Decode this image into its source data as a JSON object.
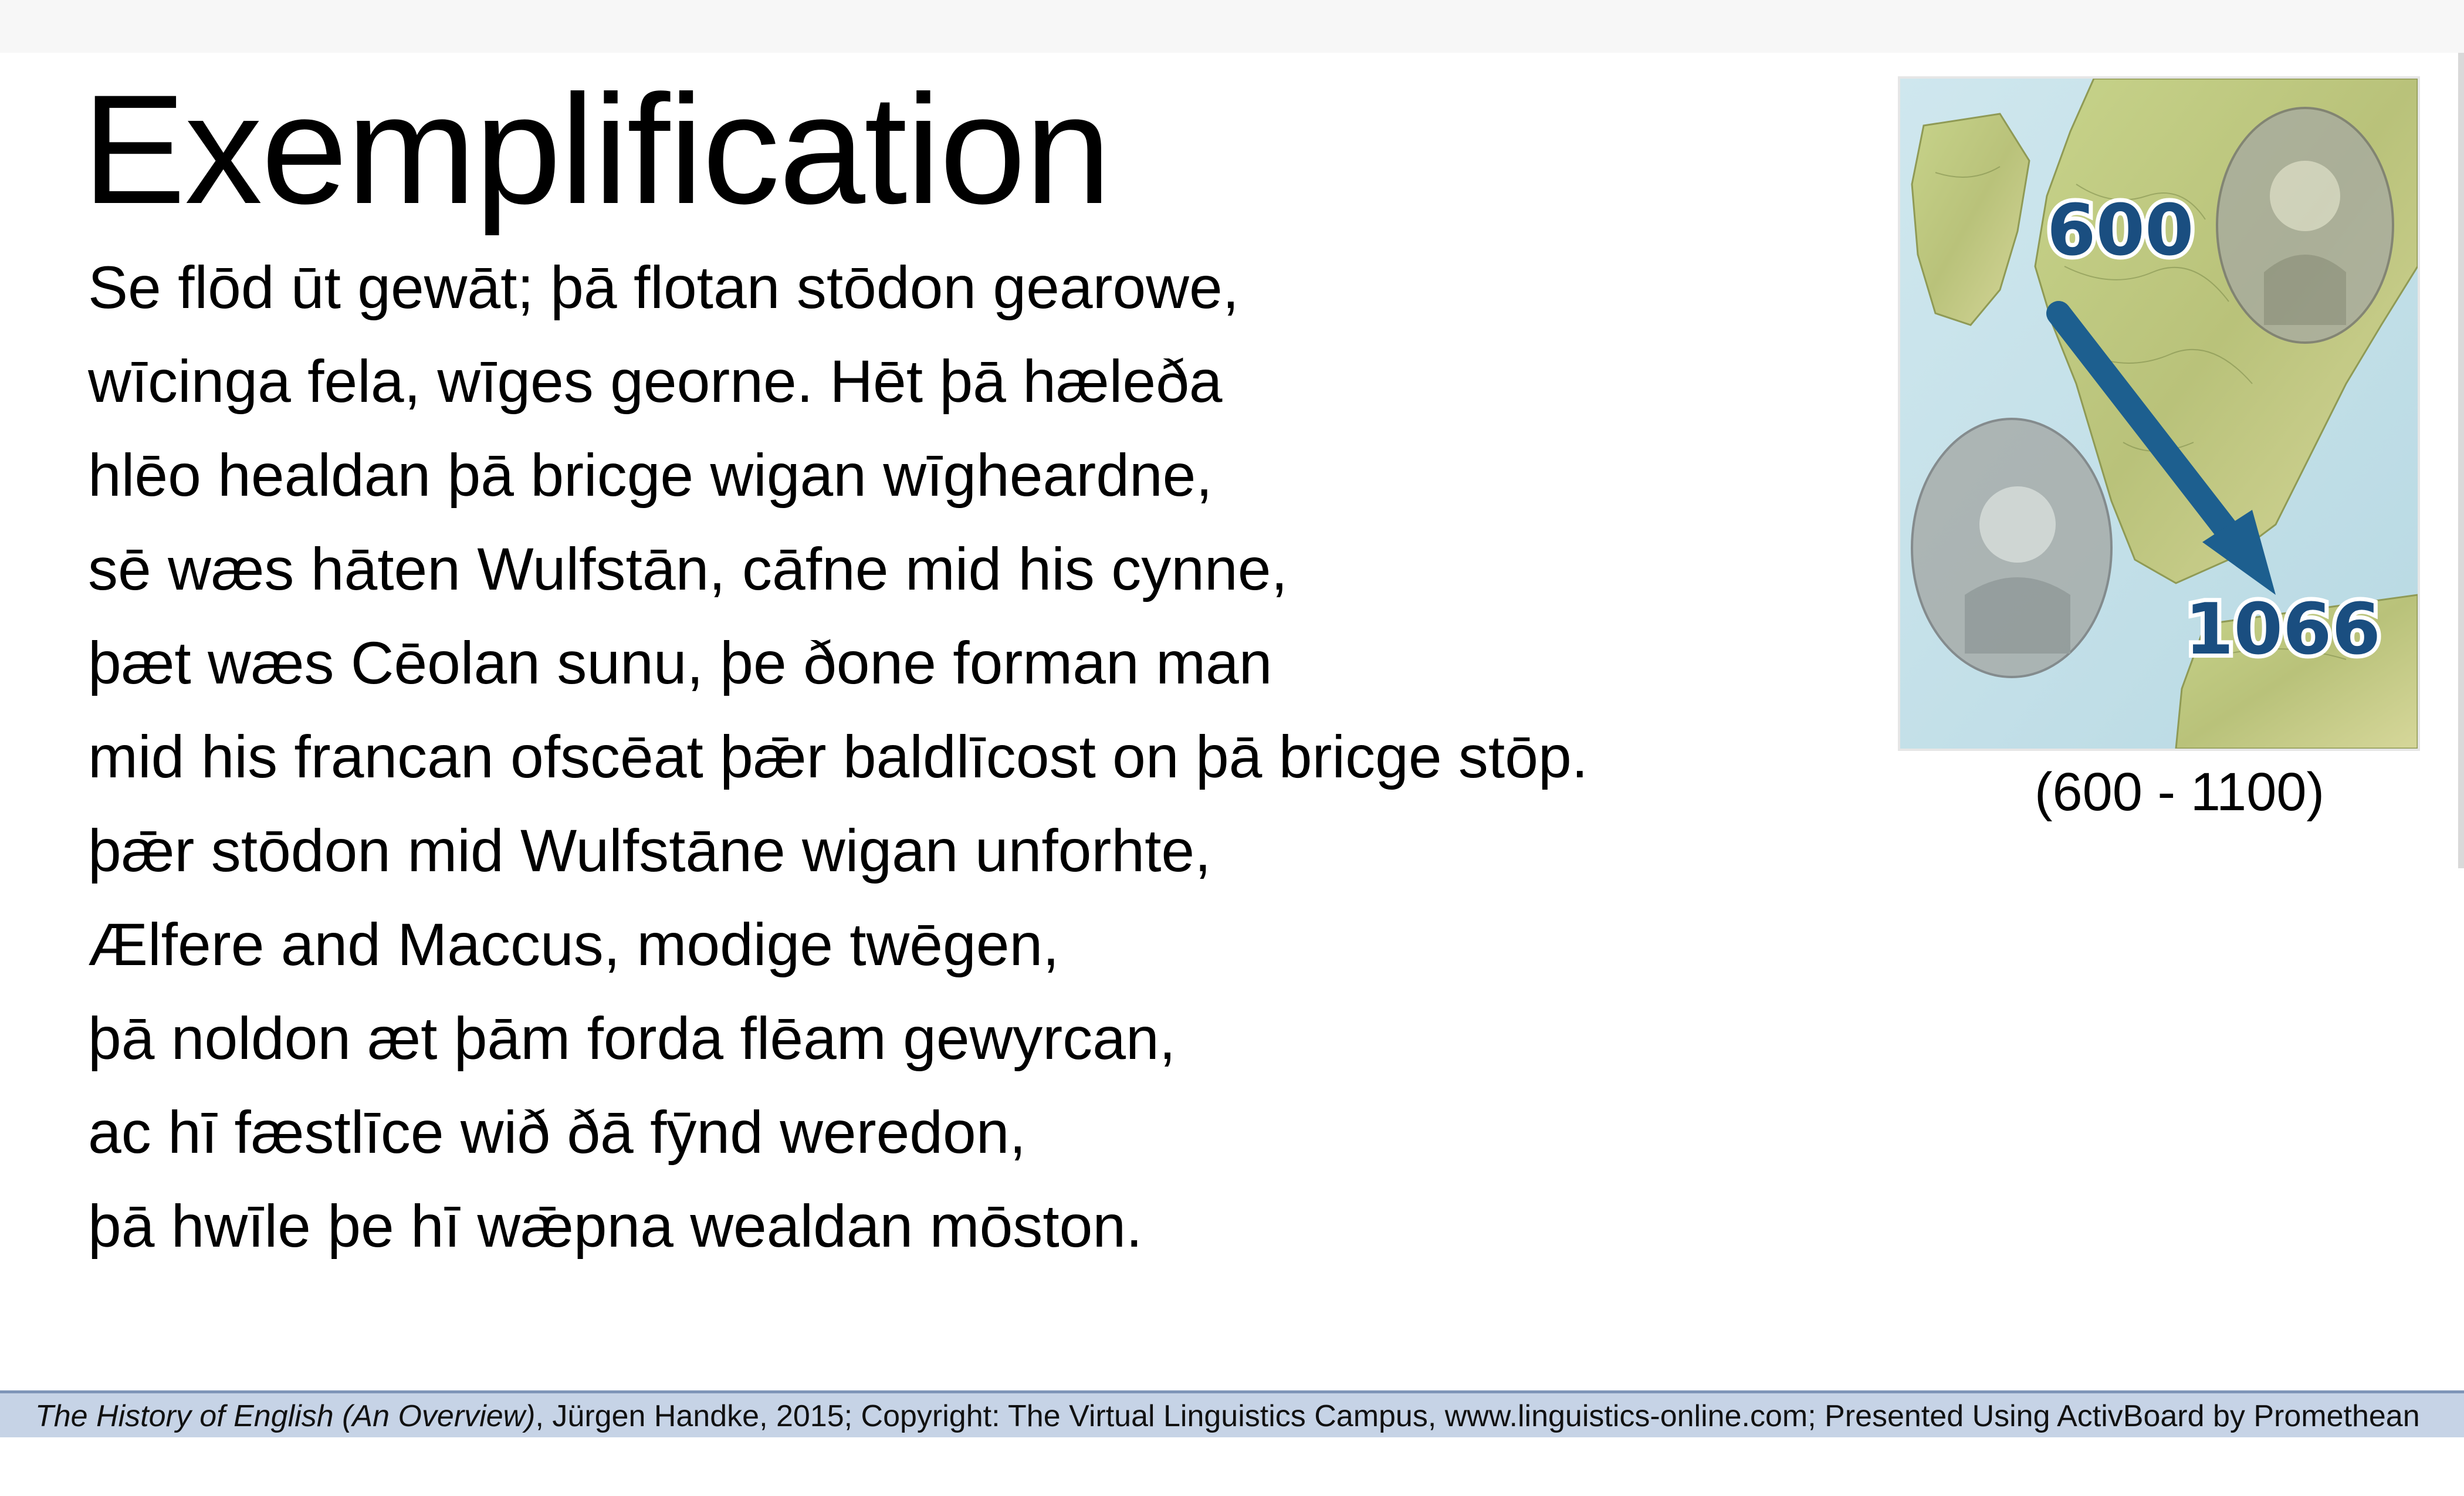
{
  "slide": {
    "title": "Exemplification",
    "poem_lines": [
      "Se flōd ūt gewāt; þā flotan stōdon gearowe,",
      "wīcinga fela, wīges georne. Hēt þā hæleða",
      "hlēo healdan þā bricge wigan wīgheardne,",
      "sē wæs hāten Wulfstān, cāfne mid his cynne,",
      "þæt wæs Cēolan sunu, þe ðone forman man",
      "mid his francan ofscēat þǣr baldlīcost on þā bricge stōp.",
      "þǣr stōdon mid Wulfstāne wigan unforhte,",
      "Ælfere and Maccus, modige twēgen,",
      "þā noldon æt þām forda flēam gewyrcan,",
      "ac hī fæstlīce wið ðā fȳnd weredon,",
      "þā hwīle þe hī wǣpna wealdan mōston."
    ],
    "map": {
      "label_start": "600",
      "label_end": "1066",
      "caption": "(600 - 1100)",
      "arrow_color": "#1d5f8f",
      "label_color": "#1a4e80"
    }
  },
  "footer": {
    "book_title": "The History of English (An Overview)",
    "credits": ", Jürgen Handke, 2015; Copyright: The Virtual Linguistics Campus, www.linguistics-online.com; Presented Using ActivBoard by Promethean"
  }
}
